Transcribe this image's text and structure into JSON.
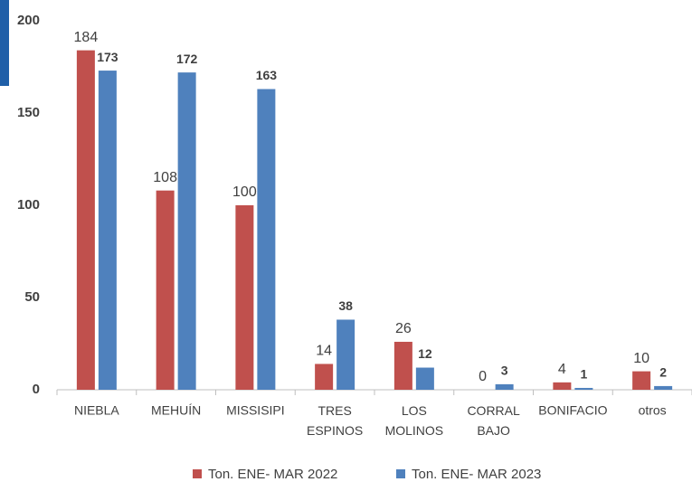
{
  "chart_data": {
    "type": "bar",
    "categories": [
      "NIEBLA",
      "MEHUÍN",
      "MISSISIPI",
      "TRES ESPINOS",
      "LOS MOLINOS",
      "CORRAL BAJO",
      "BONIFACIO",
      "otros"
    ],
    "series": [
      {
        "name": "Ton. ENE- MAR 2022",
        "color": "#c0504d",
        "values": [
          184,
          108,
          100,
          14,
          26,
          0,
          4,
          10
        ]
      },
      {
        "name": "Ton. ENE- MAR 2023",
        "color": "#4f81bd",
        "values": [
          173,
          172,
          163,
          38,
          12,
          3,
          1,
          2
        ]
      }
    ],
    "ylim": [
      0,
      200
    ],
    "yticks": [
      0,
      50,
      100,
      150,
      200
    ],
    "grid": false,
    "legend": "bottom"
  }
}
